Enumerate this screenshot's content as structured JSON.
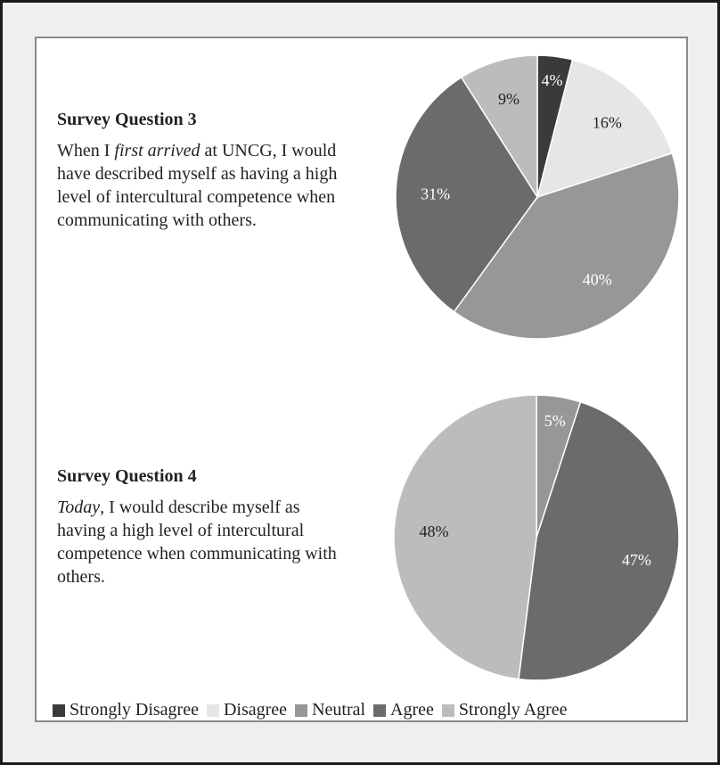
{
  "questions": [
    {
      "title": "Survey Question 3",
      "text_before": "When I ",
      "text_emph": "first arrived",
      "text_after": " at UNCG, I would have described myself as having a high level of intercultural competence when communicating with others."
    },
    {
      "title": "Survey Question 4",
      "text_before": "",
      "text_emph": "Today",
      "text_after": ", I would describe myself as having a high level of intercultural competence when communicating with others."
    }
  ],
  "legend": [
    {
      "label": "Strongly Disagree",
      "color": "#3a3a3a"
    },
    {
      "label": "Disagree",
      "color": "#e6e6e6"
    },
    {
      "label": "Neutral",
      "color": "#979797"
    },
    {
      "label": "Agree",
      "color": "#6b6b6b"
    },
    {
      "label": "Strongly Agree",
      "color": "#bcbcbc"
    }
  ],
  "chart_data": [
    {
      "type": "pie",
      "title": "",
      "categories": [
        "Strongly Disagree",
        "Disagree",
        "Neutral",
        "Agree",
        "Strongly Agree"
      ],
      "values": [
        4,
        16,
        40,
        31,
        9
      ],
      "labels": [
        "4%",
        "16%",
        "40%",
        "31%",
        "9%"
      ]
    },
    {
      "type": "pie",
      "title": "",
      "categories": [
        "Neutral",
        "Agree",
        "Strongly Agree"
      ],
      "values": [
        5,
        47,
        48
      ],
      "labels": [
        "5%",
        "47%",
        "48%"
      ]
    }
  ]
}
